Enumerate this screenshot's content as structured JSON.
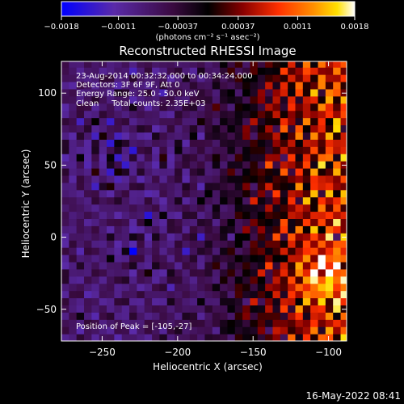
{
  "chart_data": {
    "type": "heatmap",
    "title": "Reconstructed RHESSI Image",
    "xlabel": "Heliocentric X (arcsec)",
    "ylabel": "Heliocentric Y (arcsec)",
    "xlim": [
      -277,
      -88
    ],
    "ylim": [
      -72,
      122
    ],
    "x_ticks": [
      -250,
      -200,
      -150,
      -100
    ],
    "y_ticks": [
      -50,
      0,
      50,
      100
    ],
    "x_tick_labels": [
      "−250",
      "−200",
      "−150",
      "−100"
    ],
    "y_tick_labels": [
      "−50",
      "0",
      "50",
      "100"
    ],
    "colorbar": {
      "range": [
        -0.0018,
        0.0018
      ],
      "ticks": [
        -0.0018,
        -0.0011,
        -0.00037,
        0.00037,
        0.0011,
        0.0018
      ],
      "tick_labels": [
        "−0.0018",
        "−0.0011",
        "−0.00037",
        "0.00037",
        "0.0011",
        "0.0018"
      ],
      "units_label": "(photons cm⁻² s⁻¹ asec⁻²)",
      "colormap": [
        "#0000ff",
        "#5a2aa8",
        "#3a0a40",
        "#000000",
        "#8a0000",
        "#ff3000",
        "#ff9000",
        "#ffe000",
        "#ffffff"
      ]
    },
    "annotations": [
      "23-Aug-2014 00:32:32.000 to 00:34:24.000",
      "Detectors: 3F 6F 9F, Att 0",
      "Energy Range: 25.0 - 50.0 keV",
      "Clean     Total counts: 2.35E+03"
    ],
    "peak_text": "Position of Peak = [-105,-27]",
    "peak_position": [
      -105,
      -27
    ],
    "grid": false
  },
  "footer_timestamp": "16-May-2022 08:41"
}
